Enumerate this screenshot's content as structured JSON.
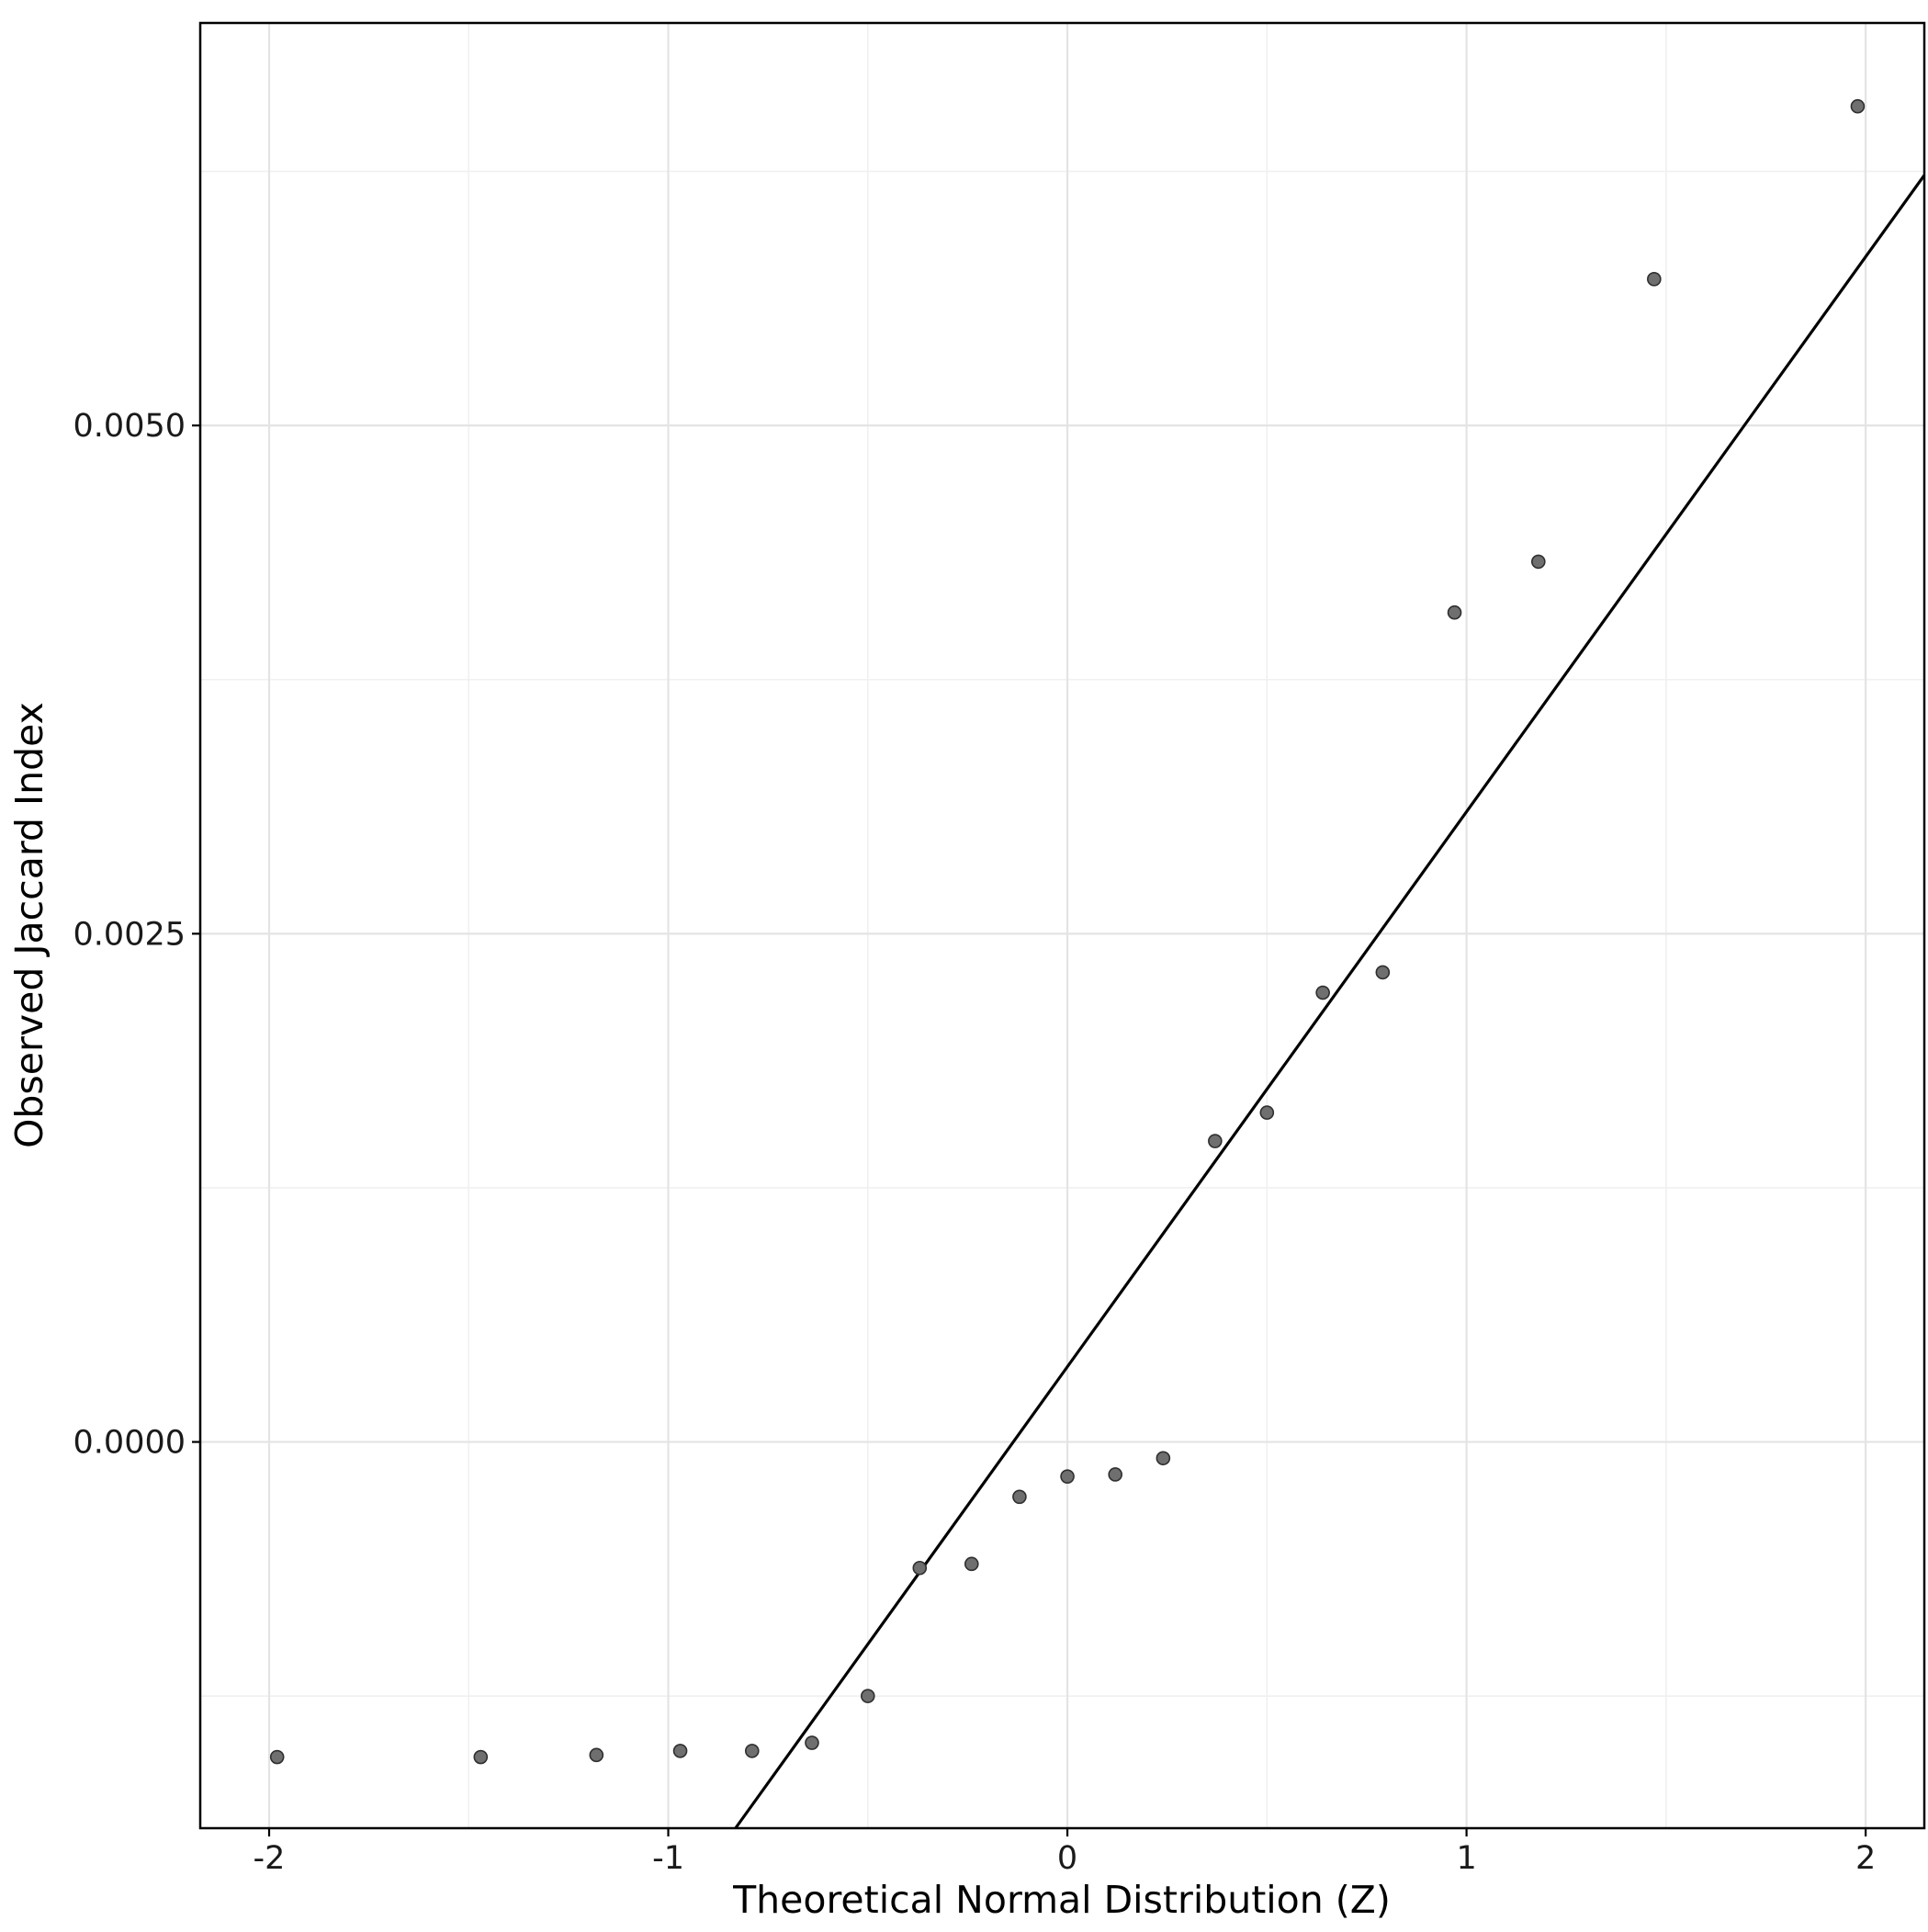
{
  "chart_data": {
    "type": "scatter",
    "title": "",
    "xlabel": "Theoretical Normal Distribution (Z)",
    "ylabel": "Observed Jaccard Index",
    "xlim": [
      -2.1726,
      2.147
    ],
    "ylim": [
      -0.0019,
      0.00698
    ],
    "x_ticks": [
      {
        "value": -2,
        "label": "-2"
      },
      {
        "value": -1,
        "label": "-1"
      },
      {
        "value": 0,
        "label": "0"
      },
      {
        "value": 1,
        "label": "1"
      },
      {
        "value": 2,
        "label": "2"
      }
    ],
    "y_ticks": [
      {
        "value": 0.0,
        "label": "0.0000"
      },
      {
        "value": 0.0025,
        "label": "0.0025"
      },
      {
        "value": 0.005,
        "label": "0.0050"
      }
    ],
    "x_minor_ticks": [
      -1.5,
      -0.5,
      0.5,
      1.5
    ],
    "y_minor_ticks": [
      -0.00125,
      0.00125,
      0.00375,
      0.00625
    ],
    "grid": {
      "major": true,
      "minor": true
    },
    "legend": "none",
    "points": [
      {
        "z": -1.98,
        "jaccard": -0.00155
      },
      {
        "z": -1.47,
        "jaccard": -0.00155
      },
      {
        "z": -1.18,
        "jaccard": -0.00154
      },
      {
        "z": -0.97,
        "jaccard": -0.00152
      },
      {
        "z": -0.79,
        "jaccard": -0.00152
      },
      {
        "z": -0.64,
        "jaccard": -0.00148
      },
      {
        "z": -0.5,
        "jaccard": -0.00125
      },
      {
        "z": -0.37,
        "jaccard": -0.00062
      },
      {
        "z": -0.24,
        "jaccard": -0.0006
      },
      {
        "z": -0.12,
        "jaccard": -0.00027
      },
      {
        "z": 0.0,
        "jaccard": -0.00017
      },
      {
        "z": 0.12,
        "jaccard": -0.00016
      },
      {
        "z": 0.24,
        "jaccard": -8e-05
      },
      {
        "z": 0.37,
        "jaccard": 0.00148
      },
      {
        "z": 0.5,
        "jaccard": 0.00162
      },
      {
        "z": 0.64,
        "jaccard": 0.00221
      },
      {
        "z": 0.79,
        "jaccard": 0.00231
      },
      {
        "z": 0.97,
        "jaccard": 0.00408
      },
      {
        "z": 1.18,
        "jaccard": 0.00433
      },
      {
        "z": 1.47,
        "jaccard": 0.00572
      },
      {
        "z": 1.98,
        "jaccard": 0.00657
      }
    ],
    "qq_line": {
      "slope": 0.00273,
      "intercept": 0.00037
    },
    "style": {
      "background": "#ffffff",
      "panel_background": "#ffffff",
      "panel_border_color": "#000000",
      "grid_major_color": "#e4e4e4",
      "grid_minor_color": "#f0f0f0",
      "point_fill": "#6f6f6f",
      "point_stroke": "#2f2f2f",
      "line_color": "#000000",
      "tick_color": "#000000",
      "text_color": "#000000"
    }
  }
}
